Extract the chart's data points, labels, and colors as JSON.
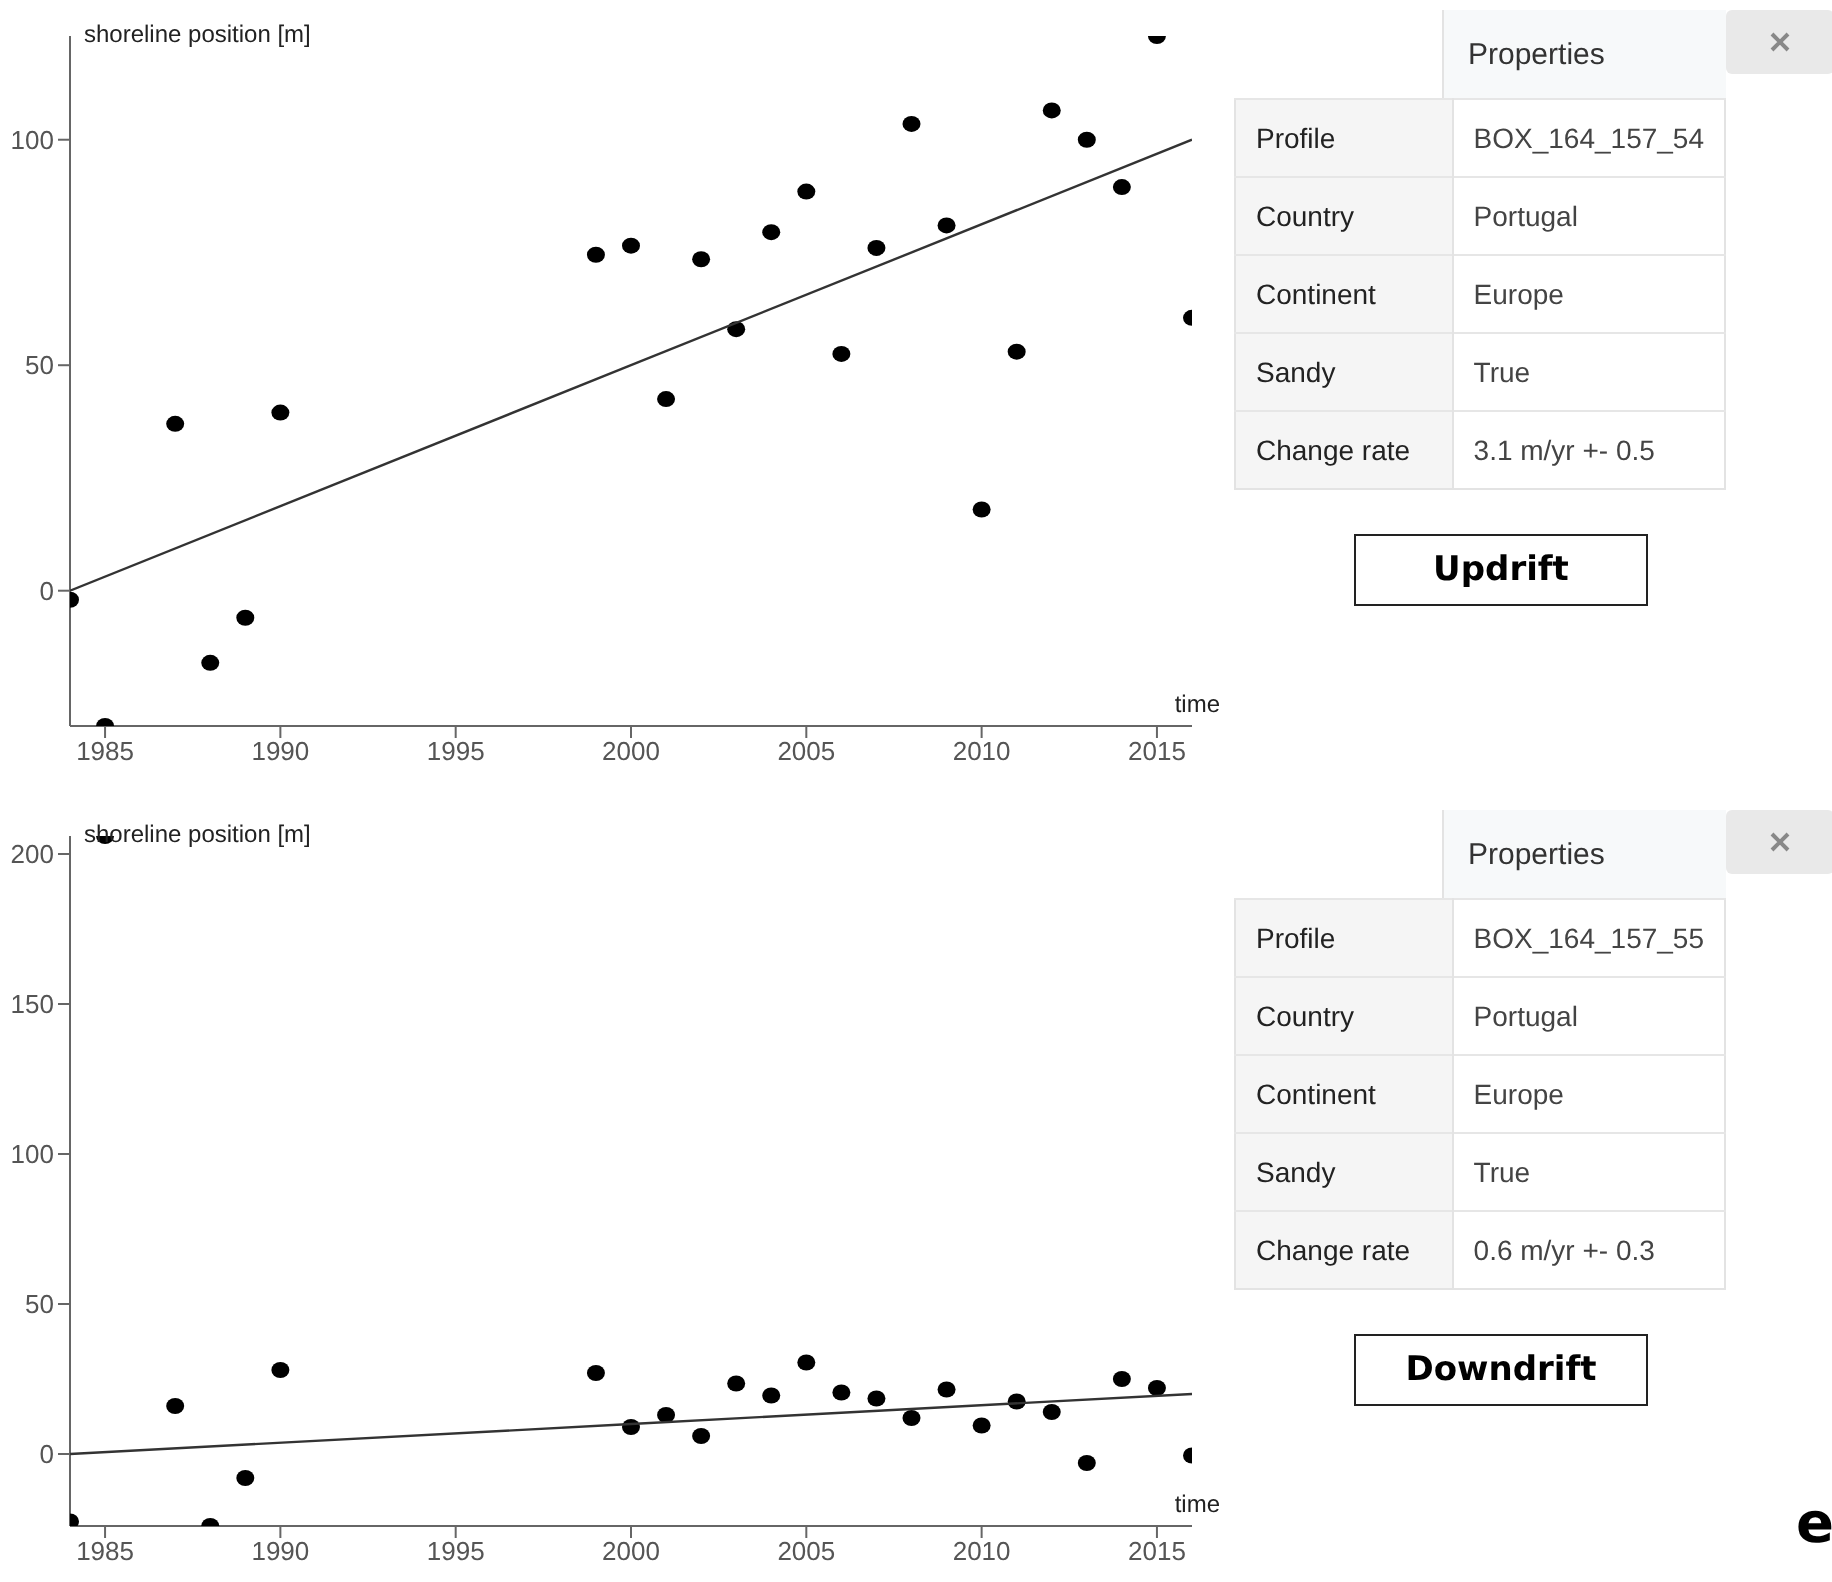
{
  "chart_data": [
    {
      "type": "scatter",
      "xlabel": "time",
      "ylabel": "shoreline position [m]",
      "xlim": [
        1984,
        2016
      ],
      "xticks": [
        1985,
        1990,
        1995,
        2000,
        2005,
        2010,
        2015
      ],
      "ylim": [
        -30,
        123
      ],
      "yticks": [
        0,
        50,
        100
      ],
      "grid": false,
      "legend": false,
      "x": [
        1984,
        1985,
        1987,
        1988,
        1989,
        1990,
        1999,
        2000,
        2001,
        2002,
        2003,
        2004,
        2005,
        2006,
        2007,
        2008,
        2009,
        2010,
        2011,
        2012,
        2013,
        2014,
        2015,
        2016
      ],
      "series": [
        {
          "type": "scatter",
          "marker": "circle",
          "color": "#000000",
          "values": [
            -2,
            -30,
            37,
            -16,
            -6,
            39.5,
            74.5,
            76.5,
            42.5,
            73.5,
            58,
            79.5,
            88.5,
            52.5,
            76,
            103.5,
            81,
            18,
            53,
            106.5,
            100,
            89.5,
            123,
            60.5
          ]
        },
        {
          "type": "line",
          "color": "#333333",
          "x": [
            1984,
            2000,
            2016
          ],
          "values": [
            0,
            50,
            100
          ]
        }
      ]
    },
    {
      "type": "other",
      "title": "Properties",
      "categories": [
        "Profile",
        "Country",
        "Continent",
        "Sandy",
        "Change rate"
      ],
      "value_labels": [
        "BOX_164_157_54",
        "Portugal",
        "Europe",
        "True",
        "3.1 m/yr +- 0.5"
      ],
      "annotations": [
        "Updrift"
      ]
    },
    {
      "type": "scatter",
      "xlabel": "time",
      "ylabel": "shoreline position [m]",
      "xlim": [
        1984,
        2016
      ],
      "xticks": [
        1985,
        1990,
        1995,
        2000,
        2005,
        2010,
        2015
      ],
      "ylim": [
        -24,
        206
      ],
      "yticks": [
        0,
        50,
        100,
        150,
        200
      ],
      "grid": false,
      "legend": false,
      "x": [
        1984,
        1985,
        1987,
        1988,
        1989,
        1990,
        1999,
        2000,
        2001,
        2002,
        2003,
        2004,
        2005,
        2006,
        2007,
        2008,
        2009,
        2010,
        2011,
        2012,
        2013,
        2014,
        2015,
        2016
      ],
      "series": [
        {
          "type": "scatter",
          "marker": "circle",
          "color": "#000000",
          "values": [
            -22.5,
            206,
            16,
            -24,
            -8,
            28,
            27,
            9,
            13,
            6,
            23.5,
            19.5,
            30.5,
            20.5,
            18.5,
            12,
            21.5,
            9.5,
            17.5,
            14,
            -3,
            25,
            22,
            -0.5
          ]
        },
        {
          "type": "line",
          "color": "#333333",
          "x": [
            1984,
            2000,
            2016
          ],
          "values": [
            0,
            10,
            20
          ]
        }
      ]
    },
    {
      "type": "other",
      "title": "Properties",
      "categories": [
        "Profile",
        "Country",
        "Continent",
        "Sandy",
        "Change rate"
      ],
      "value_labels": [
        "BOX_164_157_55",
        "Portugal",
        "Europe",
        "True",
        "0.6 m/yr +- 0.3"
      ],
      "annotations": [
        "Downdrift",
        "e"
      ]
    }
  ]
}
